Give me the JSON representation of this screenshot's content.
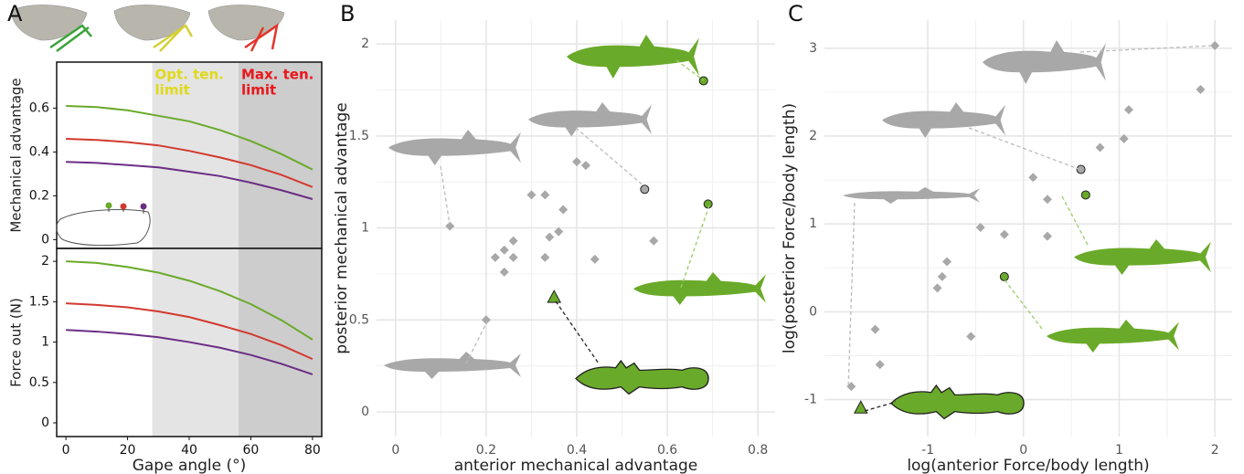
{
  "chart_data": [
    {
      "type": "line",
      "panel": "A",
      "ylabel": "Mechanical advantage",
      "frame": true,
      "xlim": [
        -3,
        83
      ],
      "ylim": [
        -0.04,
        0.81
      ],
      "yticks": [
        0,
        0.2,
        0.4,
        0.6
      ],
      "bands": [
        {
          "from": 28,
          "to": 56,
          "color": "#e4e4e4"
        },
        {
          "from": 56,
          "to": 83,
          "color": "#cdcdcd"
        }
      ],
      "annotations": [
        {
          "x": 28,
          "lines": [
            "Opt. ten.",
            "limit"
          ],
          "color": "#e0d91a"
        },
        {
          "x": 56,
          "lines": [
            "Max. ten.",
            "limit"
          ],
          "color": "#e8171c"
        }
      ],
      "x": [
        0,
        10,
        20,
        30,
        40,
        50,
        60,
        70,
        80
      ],
      "series": [
        {
          "color": "#6aaa2a",
          "values": [
            0.61,
            0.605,
            0.59,
            0.565,
            0.54,
            0.5,
            0.45,
            0.39,
            0.32
          ]
        },
        {
          "color": "#d2392f",
          "values": [
            0.46,
            0.455,
            0.445,
            0.43,
            0.405,
            0.375,
            0.34,
            0.295,
            0.24
          ]
        },
        {
          "color": "#6b2d86",
          "values": [
            0.355,
            0.35,
            0.34,
            0.33,
            0.31,
            0.29,
            0.26,
            0.225,
            0.185
          ]
        }
      ]
    },
    {
      "type": "line",
      "ylabel": "Force out (N)",
      "xlabel": "Gape angle (°)",
      "frame": true,
      "xlim": [
        -3,
        83
      ],
      "xticks": [
        0,
        20,
        40,
        60,
        80
      ],
      "ylim": [
        -0.17,
        2.16
      ],
      "yticks": [
        0,
        0.5,
        1,
        1.5,
        2
      ],
      "bands": [
        {
          "from": 28,
          "to": 56,
          "color": "#e4e4e4"
        },
        {
          "from": 56,
          "to": 83,
          "color": "#cdcdcd"
        }
      ],
      "x": [
        0,
        10,
        20,
        30,
        40,
        50,
        60,
        70,
        80
      ],
      "series": [
        {
          "color": "#6aaa2a",
          "values": [
            2.0,
            1.98,
            1.93,
            1.86,
            1.76,
            1.63,
            1.47,
            1.27,
            1.03
          ]
        },
        {
          "color": "#d2392f",
          "values": [
            1.48,
            1.46,
            1.43,
            1.38,
            1.31,
            1.21,
            1.1,
            0.96,
            0.79
          ]
        },
        {
          "color": "#6b2d86",
          "values": [
            1.15,
            1.13,
            1.1,
            1.06,
            1.0,
            0.93,
            0.84,
            0.73,
            0.6
          ]
        }
      ]
    },
    {
      "type": "scatter",
      "panel": "B",
      "xlabel": "anterior mechanical advantage",
      "ylabel": "posterior mechanical advantage",
      "grid": true,
      "xlim": [
        -0.042,
        0.838
      ],
      "xticks": [
        0,
        0.2,
        0.4,
        0.6,
        0.8
      ],
      "ylim": [
        -0.134,
        2.13
      ],
      "yticks": [
        0,
        0.5,
        1,
        1.5,
        2
      ],
      "series": [
        {
          "color": "#a8a8a8",
          "marker": "diamond",
          "x": [
            0.12,
            0.2,
            0.22,
            0.24,
            0.26,
            0.24,
            0.26,
            0.3,
            0.33,
            0.33,
            0.34,
            0.36,
            0.37,
            0.4,
            0.42,
            0.44,
            0.57
          ],
          "values": [
            1.01,
            0.5,
            0.84,
            0.88,
            0.93,
            0.76,
            0.84,
            1.18,
            1.18,
            0.84,
            0.95,
            0.98,
            1.1,
            1.36,
            1.34,
            0.83,
            0.93
          ]
        },
        {
          "color": "#a8a8a8",
          "marker": "circle",
          "x": [
            0.55
          ],
          "values": [
            1.21
          ]
        },
        {
          "color": "#6aaa2a",
          "marker": "circle",
          "x": [
            0.68,
            0.69
          ],
          "values": [
            1.8,
            1.13
          ]
        },
        {
          "color": "#6aaa2a",
          "marker": "triangle",
          "x": [
            0.35
          ],
          "values": [
            0.62
          ]
        }
      ]
    },
    {
      "type": "scatter",
      "panel": "C",
      "xlabel": "log(anterior Force/body length)",
      "ylabel": "log(posterior Force/body length)",
      "grid": true,
      "xlim": [
        -2.08,
        2.18
      ],
      "xticks": [
        -1,
        0,
        1,
        2
      ],
      "ylim": [
        -1.42,
        3.32
      ],
      "yticks": [
        -1,
        0,
        1,
        2,
        3
      ],
      "series": [
        {
          "color": "#a8a8a8",
          "marker": "diamond",
          "x": [
            2.0,
            1.85,
            1.1,
            1.05,
            0.8,
            0.1,
            0.25,
            0.25,
            -0.45,
            -0.2,
            -0.8,
            -0.85,
            -0.9,
            -0.55,
            -1.5,
            -1.55,
            -1.8
          ],
          "values": [
            3.03,
            2.53,
            2.3,
            1.97,
            1.87,
            1.53,
            1.28,
            0.86,
            0.96,
            0.88,
            0.57,
            0.4,
            0.27,
            -0.28,
            -0.6,
            -0.2,
            -0.85
          ]
        },
        {
          "color": "#a8a8a8",
          "marker": "circle",
          "x": [
            0.6
          ],
          "values": [
            1.62
          ]
        },
        {
          "color": "#6aaa2a",
          "marker": "circle",
          "x": [
            0.65,
            -0.2
          ],
          "values": [
            1.33,
            0.4
          ]
        },
        {
          "color": "#6aaa2a",
          "marker": "triangle",
          "x": [
            -1.7
          ],
          "values": [
            -1.1
          ]
        }
      ]
    }
  ]
}
